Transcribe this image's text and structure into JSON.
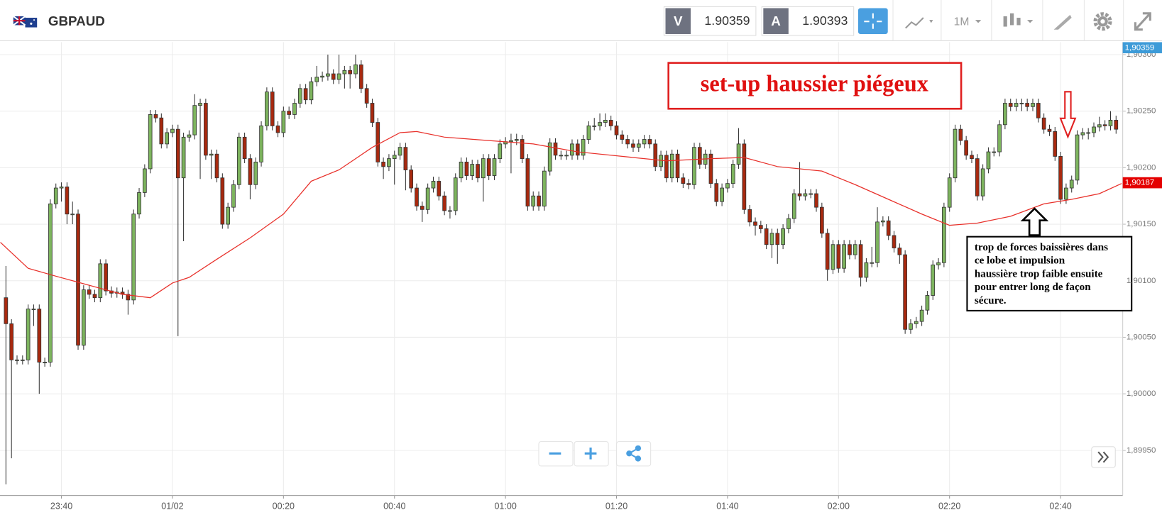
{
  "header": {
    "symbol": "GBPAUD",
    "sell_label": "V",
    "sell_price": "1.90359",
    "buy_label": "A",
    "buy_price": "1.90393",
    "timeframe": "1M"
  },
  "chart_data": {
    "type": "candlestick",
    "up_color": "#7db45e",
    "down_color": "#a8290f",
    "x": [
      0,
      1,
      2,
      3,
      4,
      5,
      6,
      7,
      8,
      9,
      10,
      11,
      12,
      13,
      14,
      15,
      16,
      17,
      18,
      19,
      20,
      21,
      22,
      23,
      24,
      25,
      26,
      27,
      28,
      29,
      30,
      31,
      32,
      33,
      34,
      35,
      36,
      37,
      38,
      39,
      40,
      41,
      42,
      43,
      44,
      45,
      46,
      47,
      48,
      49,
      50,
      51,
      52,
      53,
      54,
      55,
      56,
      57,
      58,
      59,
      60,
      61,
      62,
      63,
      64,
      65,
      66,
      67,
      68,
      69,
      70,
      71,
      72,
      73,
      74,
      75,
      76,
      77,
      78,
      79,
      80,
      81,
      82,
      83,
      84,
      85,
      86,
      87,
      88,
      89,
      90,
      91,
      92,
      93,
      94,
      95,
      96,
      97,
      98,
      99,
      100,
      101,
      102,
      103,
      104,
      105,
      106,
      107,
      108,
      109,
      110,
      111,
      112,
      113,
      114,
      115,
      116,
      117,
      118,
      119,
      120,
      121,
      122,
      123,
      124,
      125,
      126,
      127,
      128,
      129,
      130,
      131,
      132,
      133,
      134,
      135,
      136,
      137,
      138,
      139,
      140,
      141,
      142,
      143,
      144,
      145,
      146,
      147,
      148,
      149,
      150,
      151,
      152,
      153,
      154,
      155,
      156,
      157,
      158,
      159,
      160,
      161,
      162,
      163,
      164,
      165,
      166,
      167,
      168,
      169,
      170,
      171,
      172,
      173,
      174,
      175,
      176,
      177,
      178,
      179,
      180,
      181,
      182,
      183,
      184,
      185,
      186,
      187,
      188,
      189,
      190,
      191,
      192,
      193,
      194,
      195,
      196,
      197,
      198,
      199,
      200
    ],
    "open": [
      1.90085,
      1.90062,
      1.9003,
      1.9003,
      1.9003,
      1.90075,
      1.90075,
      1.90028,
      1.90028,
      1.90168,
      1.90182,
      1.90183,
      1.90159,
      1.90159,
      1.90043,
      1.90092,
      1.90088,
      1.90085,
      1.90115,
      1.90091,
      1.90089,
      1.9009,
      1.90088,
      1.90083,
      1.90159,
      1.90178,
      1.90199,
      1.90247,
      1.90244,
      1.90221,
      1.90231,
      1.90234,
      1.90191,
      1.90227,
      1.90229,
      1.90255,
      1.90257,
      1.90211,
      1.90212,
      1.90191,
      1.9015,
      1.90165,
      1.90185,
      1.90227,
      1.90208,
      1.90185,
      1.90205,
      1.90237,
      1.90267,
      1.90237,
      1.90231,
      1.9025,
      1.90247,
      1.90257,
      1.9027,
      1.9026,
      1.90276,
      1.9028,
      1.90281,
      1.90283,
      1.90278,
      1.90283,
      1.90286,
      1.90283,
      1.90291,
      1.9027,
      1.90257,
      1.9024,
      1.90205,
      1.90201,
      1.90208,
      1.90211,
      1.90218,
      1.90198,
      1.90182,
      1.90166,
      1.90163,
      1.90182,
      1.90188,
      1.90175,
      1.90162,
      1.90162,
      1.90191,
      1.90205,
      1.90193,
      1.90203,
      1.90191,
      1.90208,
      1.90193,
      1.90208,
      1.90221,
      1.90223,
      1.90224,
      1.90225,
      1.90208,
      1.90166,
      1.90175,
      1.90166,
      1.90197,
      1.90222,
      1.90211,
      1.90211,
      1.90211,
      1.90221,
      1.90211,
      1.90225,
      1.90237,
      1.90237,
      1.9024,
      1.90242,
      1.90237,
      1.90229,
      1.90225,
      1.90221,
      1.90218,
      1.90221,
      1.90225,
      1.90221,
      1.90201,
      1.90211,
      1.90191,
      1.90212,
      1.90191,
      1.90186,
      1.90185,
      1.90218,
      1.90203,
      1.90212,
      1.90186,
      1.9017,
      1.90182,
      1.90186,
      1.90203,
      1.90221,
      1.90163,
      1.90152,
      1.90149,
      1.90146,
      1.90132,
      1.90142,
      1.90132,
      1.90146,
      1.90155,
      1.90177,
      1.90175,
      1.90177,
      1.90177,
      1.90165,
      1.90142,
      1.9011,
      1.90132,
      1.90111,
      1.90132,
      1.90123,
      1.90132,
      1.90103,
      1.90116,
      1.90116,
      1.90152,
      1.90153,
      1.9014,
      1.90129,
      1.90123,
      1.90057,
      1.90062,
      1.90064,
      1.90074,
      1.90087,
      1.90114,
      1.90116,
      1.90165,
      1.90191,
      1.90234,
      1.90224,
      1.90211,
      1.90208,
      1.90175,
      1.90199,
      1.90214,
      1.90214,
      1.90238,
      1.90257,
      1.90254,
      1.90257,
      1.90257,
      1.90254,
      1.90257,
      1.90244,
      1.90234,
      1.90232,
      1.9021,
      1.90172,
      1.90182,
      1.90189,
      1.90229,
      1.90231,
      1.90231,
      1.90236,
      1.90238,
      1.90237,
      1.90242
    ],
    "high": [
      1.90113,
      1.90066,
      1.90034,
      1.90034,
      1.90079,
      1.90079,
      1.90079,
      1.90032,
      1.90172,
      1.90186,
      1.90187,
      1.90187,
      1.9017,
      1.90163,
      1.90096,
      1.90096,
      1.90092,
      1.90119,
      1.90119,
      1.90095,
      1.90094,
      1.90094,
      1.90092,
      1.90163,
      1.90182,
      1.90203,
      1.90251,
      1.90251,
      1.90248,
      1.90235,
      1.90238,
      1.90238,
      1.90231,
      1.90233,
      1.90265,
      1.90261,
      1.90261,
      1.90216,
      1.90216,
      1.90195,
      1.90169,
      1.90189,
      1.90231,
      1.90231,
      1.90212,
      1.90209,
      1.90241,
      1.90271,
      1.90271,
      1.90241,
      1.90254,
      1.90254,
      1.90261,
      1.90274,
      1.90274,
      1.9028,
      1.9029,
      1.90285,
      1.903,
      1.90287,
      1.903,
      1.9029,
      1.9029,
      1.903,
      1.90295,
      1.90274,
      1.90261,
      1.90244,
      1.90209,
      1.90212,
      1.90215,
      1.90222,
      1.90222,
      1.90202,
      1.90186,
      1.9017,
      1.90186,
      1.90192,
      1.90192,
      1.90179,
      1.90166,
      1.90195,
      1.90209,
      1.90209,
      1.90207,
      1.90207,
      1.90212,
      1.90212,
      1.90212,
      1.90225,
      1.90227,
      1.9023,
      1.9023,
      1.90229,
      1.90212,
      1.90179,
      1.90179,
      1.90201,
      1.90226,
      1.90226,
      1.90215,
      1.90215,
      1.90225,
      1.90225,
      1.90229,
      1.90241,
      1.90244,
      1.90248,
      1.90248,
      1.90246,
      1.90241,
      1.90233,
      1.90229,
      1.90225,
      1.90225,
      1.90229,
      1.90229,
      1.90225,
      1.90215,
      1.90215,
      1.90216,
      1.90216,
      1.90195,
      1.9019,
      1.90222,
      1.90222,
      1.90216,
      1.90216,
      1.9019,
      1.90186,
      1.9019,
      1.90207,
      1.90235,
      1.90225,
      1.90167,
      1.90156,
      1.90153,
      1.9015,
      1.90146,
      1.90146,
      1.9015,
      1.90159,
      1.90181,
      1.90205,
      1.90181,
      1.90181,
      1.90181,
      1.90169,
      1.90146,
      1.90136,
      1.90136,
      1.90136,
      1.90136,
      1.90136,
      1.90136,
      1.9012,
      1.9013,
      1.90165,
      1.90157,
      1.90157,
      1.90144,
      1.90133,
      1.90127,
      1.90066,
      1.90068,
      1.90078,
      1.90091,
      1.90118,
      1.9012,
      1.90169,
      1.90195,
      1.90238,
      1.90238,
      1.90228,
      1.90215,
      1.90212,
      1.90203,
      1.90218,
      1.90218,
      1.90242,
      1.90261,
      1.90261,
      1.90261,
      1.90261,
      1.90261,
      1.90261,
      1.90261,
      1.90248,
      1.90238,
      1.90236,
      1.90214,
      1.90186,
      1.90193,
      1.90233,
      1.90235,
      1.90235,
      1.9024,
      1.90245,
      1.90242,
      1.9025,
      1.90246
    ],
    "low": [
      1.8992,
      1.89943,
      1.90026,
      1.90026,
      1.90026,
      1.9006,
      1.9,
      1.90024,
      1.90024,
      1.90164,
      1.9017,
      1.9015,
      1.9015,
      1.90039,
      1.90039,
      1.90084,
      1.90081,
      1.90081,
      1.90087,
      1.90085,
      1.90085,
      1.90084,
      1.9007,
      1.90079,
      1.90155,
      1.90174,
      1.90195,
      1.9024,
      1.90217,
      1.90217,
      1.90227,
      1.90051,
      1.90135,
      1.90223,
      1.90225,
      1.9019,
      1.90207,
      1.9019,
      1.90187,
      1.90146,
      1.90146,
      1.90161,
      1.90181,
      1.90204,
      1.90172,
      1.90181,
      1.90201,
      1.90233,
      1.90233,
      1.90227,
      1.90227,
      1.90243,
      1.90243,
      1.90253,
      1.90256,
      1.90256,
      1.90272,
      1.90276,
      1.90277,
      1.90274,
      1.90274,
      1.9027,
      1.9027,
      1.90279,
      1.90266,
      1.90253,
      1.90236,
      1.90201,
      1.9019,
      1.90197,
      1.90185,
      1.90207,
      1.9018,
      1.90178,
      1.90162,
      1.90152,
      1.90159,
      1.90178,
      1.90171,
      1.90158,
      1.90155,
      1.90158,
      1.90187,
      1.90189,
      1.90189,
      1.90187,
      1.9017,
      1.90189,
      1.90189,
      1.90204,
      1.90217,
      1.90195,
      1.9022,
      1.90204,
      1.90162,
      1.90162,
      1.90162,
      1.90162,
      1.90193,
      1.90207,
      1.90207,
      1.90207,
      1.90207,
      1.90207,
      1.90207,
      1.90221,
      1.90233,
      1.90233,
      1.90236,
      1.90233,
      1.90225,
      1.90221,
      1.90217,
      1.90214,
      1.90214,
      1.90217,
      1.90217,
      1.90197,
      1.90197,
      1.90187,
      1.90187,
      1.90187,
      1.90182,
      1.90181,
      1.90181,
      1.90199,
      1.90199,
      1.90182,
      1.90166,
      1.90166,
      1.90178,
      1.90182,
      1.90199,
      1.90159,
      1.90148,
      1.9014,
      1.90142,
      1.90128,
      1.9012,
      1.90115,
      1.90128,
      1.90142,
      1.90151,
      1.90171,
      1.90171,
      1.90173,
      1.90161,
      1.90138,
      1.901,
      1.90106,
      1.90107,
      1.90107,
      1.90119,
      1.90119,
      1.90095,
      1.90099,
      1.90112,
      1.90112,
      1.90148,
      1.90136,
      1.90125,
      1.90115,
      1.90053,
      1.90053,
      1.90058,
      1.9006,
      1.9007,
      1.90083,
      1.9011,
      1.90112,
      1.90161,
      1.90187,
      1.9022,
      1.90207,
      1.90204,
      1.90171,
      1.90171,
      1.90195,
      1.9021,
      1.9021,
      1.90234,
      1.9025,
      1.9025,
      1.9025,
      1.9025,
      1.9025,
      1.9024,
      1.9023,
      1.90228,
      1.90206,
      1.90168,
      1.90168,
      1.90178,
      1.90185,
      1.90225,
      1.90225,
      1.90227,
      1.90232,
      1.90233,
      1.90233,
      1.9023
    ],
    "close": [
      1.90062,
      1.9003,
      1.9003,
      1.9003,
      1.90075,
      1.90075,
      1.90028,
      1.90028,
      1.90168,
      1.90182,
      1.90183,
      1.90159,
      1.90159,
      1.90043,
      1.90092,
      1.90088,
      1.90085,
      1.90115,
      1.90091,
      1.90089,
      1.9009,
      1.90088,
      1.90083,
      1.90159,
      1.90178,
      1.90199,
      1.90247,
      1.90244,
      1.90221,
      1.90231,
      1.90234,
      1.90191,
      1.90227,
      1.90229,
      1.90255,
      1.90257,
      1.90211,
      1.90212,
      1.90191,
      1.9015,
      1.90165,
      1.90185,
      1.90227,
      1.90208,
      1.90185,
      1.90205,
      1.90237,
      1.90267,
      1.90237,
      1.90231,
      1.9025,
      1.90247,
      1.90257,
      1.9027,
      1.9026,
      1.90276,
      1.9028,
      1.90281,
      1.90283,
      1.90278,
      1.90283,
      1.90286,
      1.90283,
      1.90291,
      1.9027,
      1.90257,
      1.9024,
      1.90205,
      1.90201,
      1.90208,
      1.90211,
      1.90218,
      1.90198,
      1.90182,
      1.90166,
      1.90163,
      1.90182,
      1.90188,
      1.90175,
      1.90162,
      1.90162,
      1.90191,
      1.90205,
      1.90193,
      1.90203,
      1.90191,
      1.90208,
      1.90193,
      1.90208,
      1.90221,
      1.90223,
      1.90224,
      1.90225,
      1.90208,
      1.90166,
      1.90175,
      1.90166,
      1.90197,
      1.90222,
      1.90211,
      1.90211,
      1.90211,
      1.90221,
      1.90211,
      1.90225,
      1.90237,
      1.90237,
      1.9024,
      1.90242,
      1.90237,
      1.90229,
      1.90225,
      1.90221,
      1.90218,
      1.90221,
      1.90225,
      1.90221,
      1.90201,
      1.90211,
      1.90191,
      1.90212,
      1.90191,
      1.90186,
      1.90185,
      1.90218,
      1.90203,
      1.90212,
      1.90186,
      1.9017,
      1.90182,
      1.90186,
      1.90203,
      1.90221,
      1.90163,
      1.90152,
      1.90149,
      1.90146,
      1.90132,
      1.90142,
      1.90132,
      1.90146,
      1.90155,
      1.90177,
      1.90175,
      1.90177,
      1.90177,
      1.90165,
      1.90142,
      1.9011,
      1.90132,
      1.90111,
      1.90132,
      1.90123,
      1.90132,
      1.90103,
      1.90116,
      1.90116,
      1.90152,
      1.90153,
      1.9014,
      1.90129,
      1.90123,
      1.90057,
      1.90062,
      1.90064,
      1.90074,
      1.90087,
      1.90114,
      1.90116,
      1.90165,
      1.90191,
      1.90234,
      1.90224,
      1.90211,
      1.90208,
      1.90175,
      1.90199,
      1.90214,
      1.90214,
      1.90238,
      1.90257,
      1.90254,
      1.90257,
      1.90257,
      1.90254,
      1.90257,
      1.90244,
      1.90234,
      1.90232,
      1.9021,
      1.90172,
      1.90182,
      1.90189,
      1.90229,
      1.90231,
      1.90231,
      1.90236,
      1.90238,
      1.90237,
      1.90242,
      1.90234
    ],
    "overlays": [
      {
        "type": "line",
        "color": "#e8302a",
        "x": [
          -1,
          4,
          9,
          15,
          21,
          26,
          30,
          33,
          38,
          44,
          50,
          55,
          60,
          66,
          71,
          74,
          79,
          87,
          95,
          103,
          111,
          119,
          127,
          133,
          139,
          147,
          153,
          159,
          165,
          170,
          175,
          181,
          187,
          192,
          197,
          201
        ],
        "values": [
          1.90134,
          1.90111,
          1.90104,
          1.90096,
          1.90088,
          1.90085,
          1.90098,
          1.90103,
          1.90119,
          1.90138,
          1.90159,
          1.90188,
          1.90198,
          1.90218,
          1.90231,
          1.90232,
          1.90227,
          1.90224,
          1.90221,
          1.90214,
          1.9021,
          1.90206,
          1.90208,
          1.90209,
          1.90201,
          1.90197,
          1.90185,
          1.90172,
          1.90159,
          1.90149,
          1.90151,
          1.90157,
          1.90168,
          1.90172,
          1.90177,
          1.90186
        ]
      }
    ],
    "xlim": [
      -1.07,
      201.2
    ],
    "xticks": [
      {
        "value": 10,
        "label": "23:40"
      },
      {
        "value": 30,
        "label": "01/02"
      },
      {
        "value": 50,
        "label": "00:20"
      },
      {
        "value": 70,
        "label": "00:40"
      },
      {
        "value": 90,
        "label": "01:00"
      },
      {
        "value": 110,
        "label": "01:20"
      },
      {
        "value": 130,
        "label": "01:40"
      },
      {
        "value": 150,
        "label": "02:00"
      },
      {
        "value": 170,
        "label": "02:20"
      },
      {
        "value": 190,
        "label": "02:40"
      }
    ],
    "ylim": [
      1.8991,
      1.90311
    ],
    "yticks": [
      {
        "value": 1.903,
        "label": "1,90300"
      },
      {
        "value": 1.9025,
        "label": "1,90250"
      },
      {
        "value": 1.902,
        "label": "1,90200"
      },
      {
        "value": 1.9015,
        "label": "1,90150"
      },
      {
        "value": 1.901,
        "label": "1,90100"
      },
      {
        "value": 1.9005,
        "label": "1,90050"
      },
      {
        "value": 1.9,
        "label": "1,90000"
      },
      {
        "value": 1.8995,
        "label": "1,89950"
      }
    ],
    "grid": true,
    "price_tags": [
      {
        "value": 1.90359,
        "label": "1,90359",
        "color": "#3d9bd8"
      },
      {
        "value": 1.90187,
        "label": "1,90187",
        "color": "#e40000"
      }
    ],
    "annotations": {
      "title": "set-up haussier piégeux",
      "note": [
        "trop de forces baissières dans",
        "ce lobe et impulsion",
        "haussière trop faible ensuite",
        "pour entrer long de façon",
        "sécure."
      ]
    }
  }
}
